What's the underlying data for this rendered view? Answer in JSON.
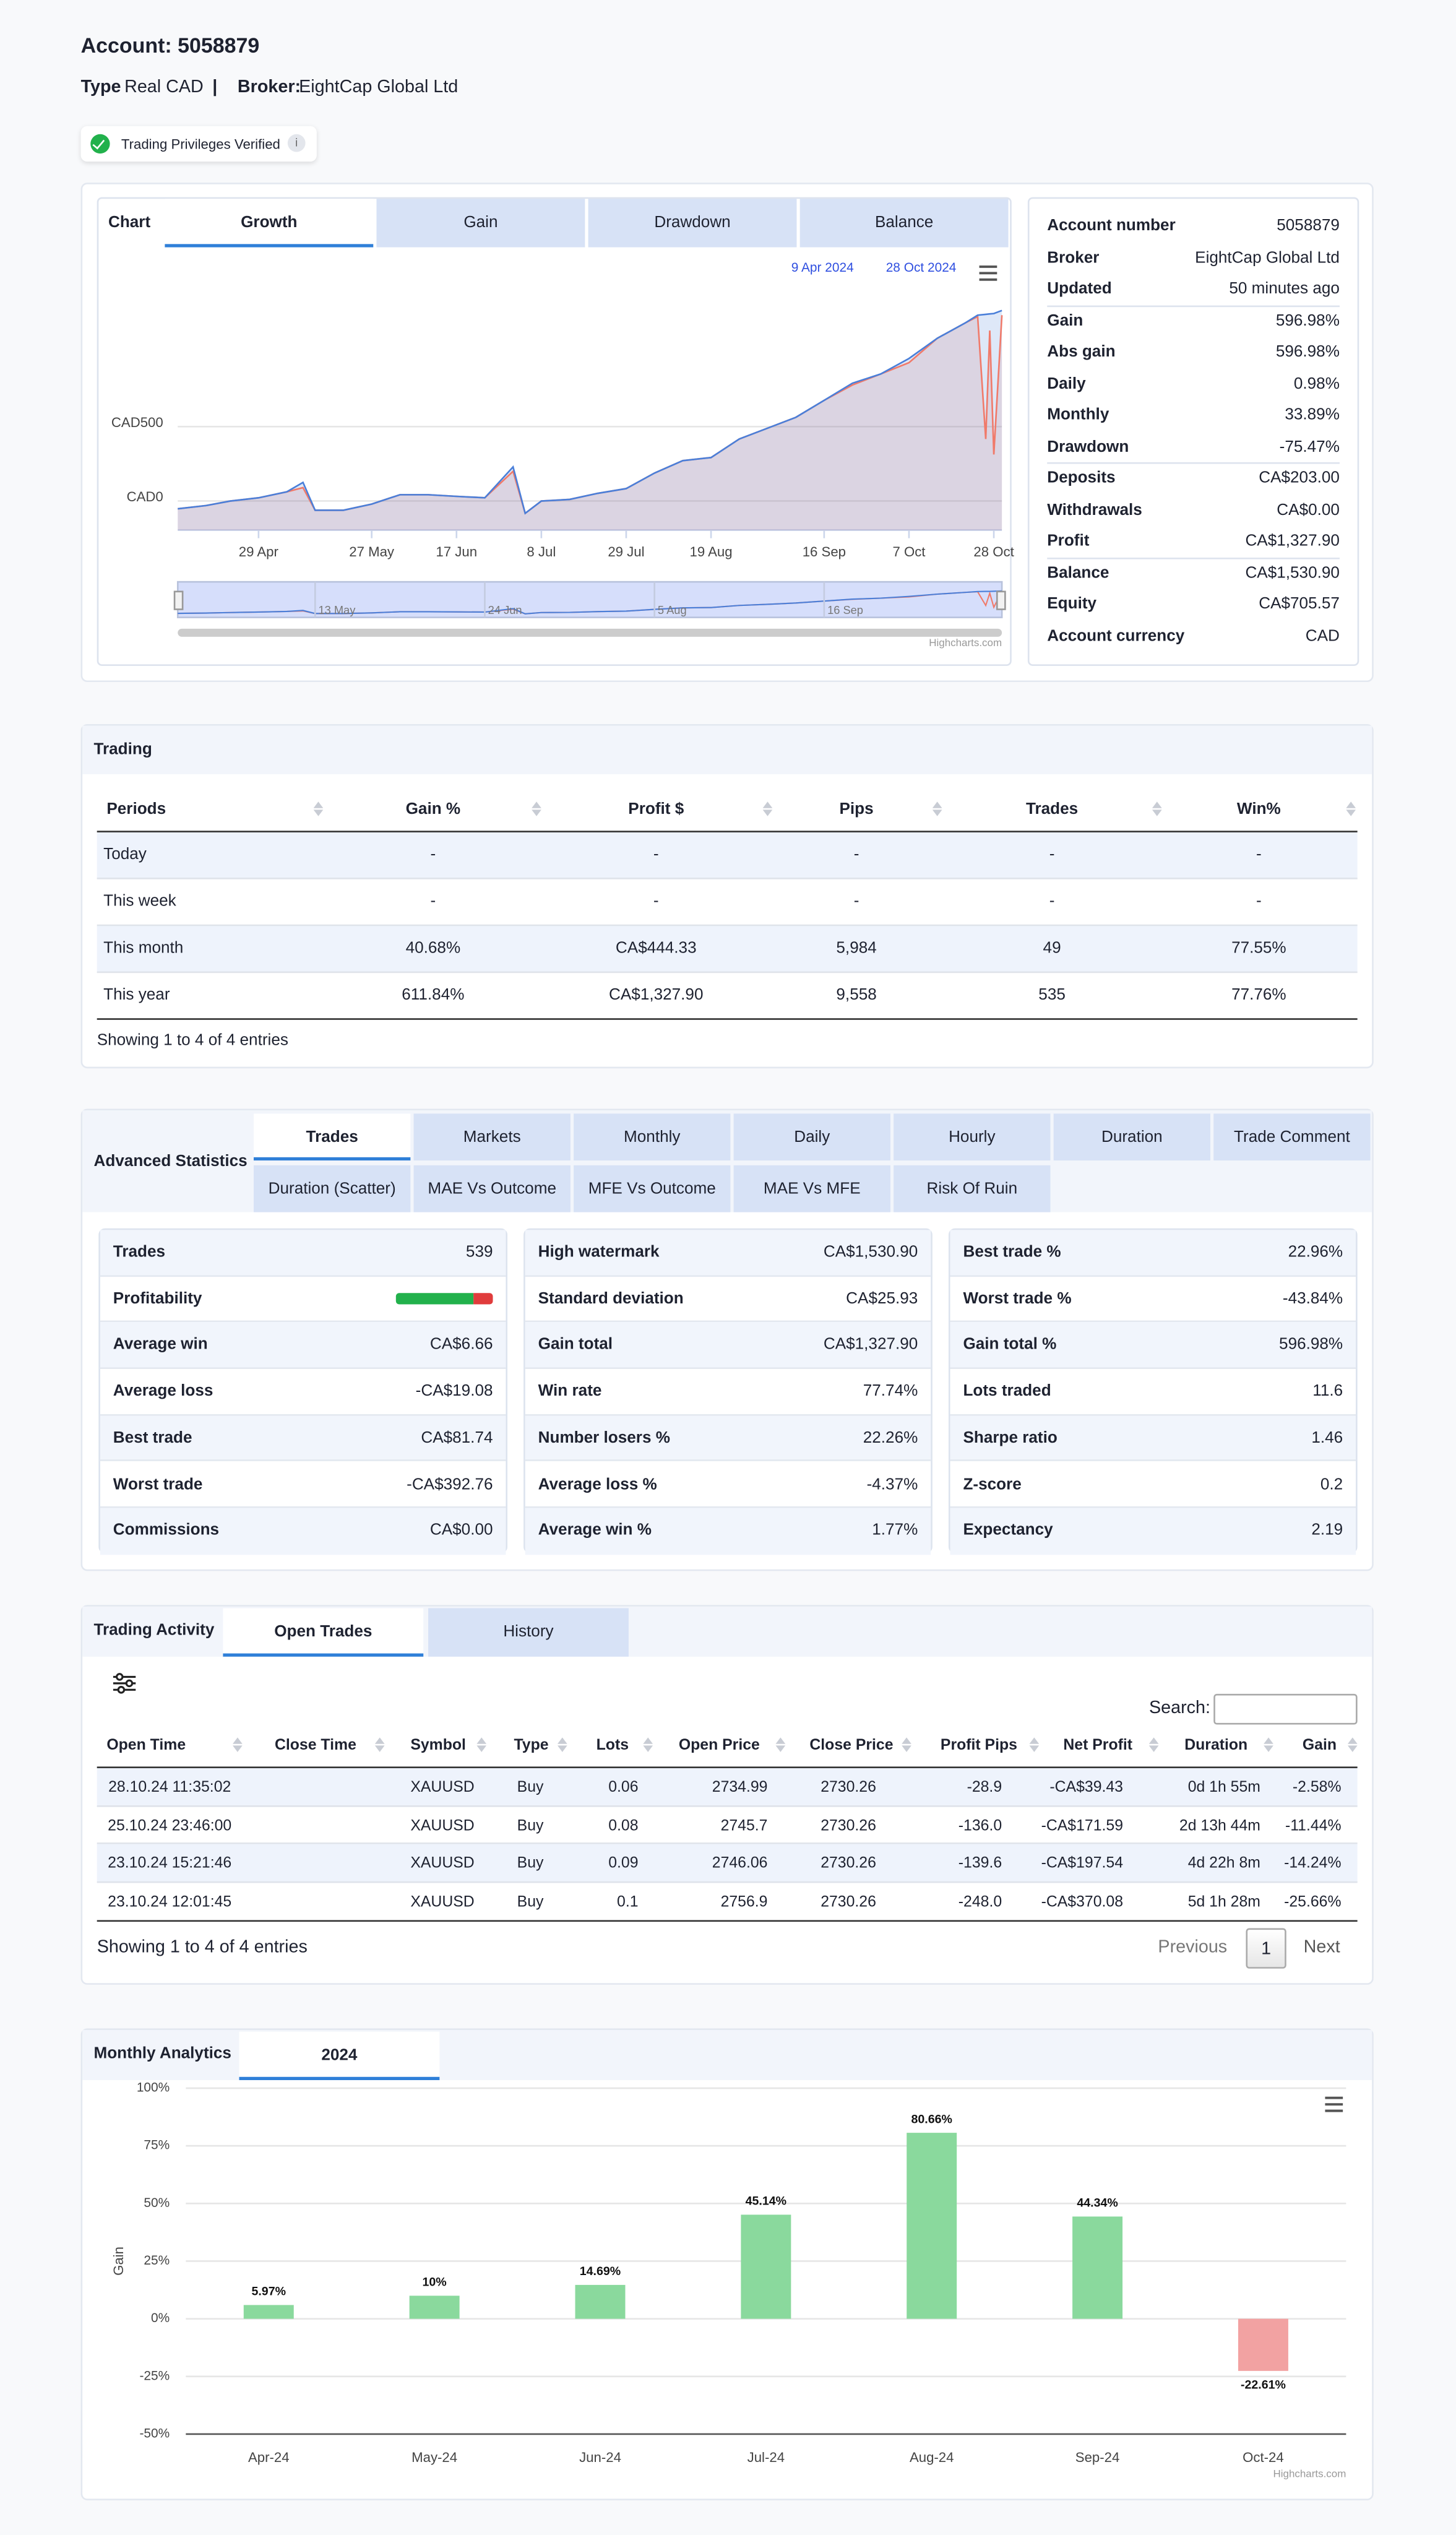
{
  "header": {
    "account": "Account: 5058879",
    "type_label": "Type",
    "type": "Real CAD",
    "separator": "|",
    "broker_label": "Broker:",
    "broker": "EightCap Global Ltd",
    "verified": "Trading Privileges Verified",
    "info_icon": "i"
  },
  "chart_panel": {
    "label": "Chart",
    "tabs": [
      "Growth",
      "Gain",
      "Drawdown",
      "Balance"
    ],
    "active_tab": 0
  },
  "account_info": [
    [
      "Account number",
      "5058879"
    ],
    [
      "Broker",
      "EightCap Global Ltd"
    ],
    [
      "Updated",
      "50 minutes ago"
    ],
    [
      "Gain",
      "596.98%"
    ],
    [
      "Abs gain",
      "596.98%"
    ],
    [
      "Daily",
      "0.98%"
    ],
    [
      "Monthly",
      "33.89%"
    ],
    [
      "Drawdown",
      "-75.47%"
    ],
    [
      "Deposits",
      "CA$203.00"
    ],
    [
      "Withdrawals",
      "CA$0.00"
    ],
    [
      "Profit",
      "CA$1,327.90"
    ],
    [
      "Balance",
      "CA$1,530.90"
    ],
    [
      "Equity",
      "CA$705.57"
    ],
    [
      "Account currency",
      "CAD"
    ]
  ],
  "trading": {
    "title": "Trading",
    "columns": [
      "Periods",
      "Gain %",
      "Profit $",
      "Pips",
      "Trades",
      "Win%"
    ],
    "rows": [
      [
        "Today",
        "-",
        "-",
        "-",
        "-",
        "-"
      ],
      [
        "This week",
        "-",
        "-",
        "-",
        "-",
        "-"
      ],
      [
        "This month",
        "40.68%",
        "CA$444.33",
        "5,984",
        "49",
        "77.55%"
      ],
      [
        "This year",
        "611.84%",
        "CA$1,327.90",
        "9,558",
        "535",
        "77.76%"
      ]
    ],
    "footer": "Showing 1 to 4 of 4 entries"
  },
  "advanced": {
    "title": "Advanced Statistics",
    "tabs": [
      [
        "Trades",
        "Markets",
        "Monthly",
        "Daily",
        "Hourly",
        "Duration",
        "Trade Comment"
      ],
      [
        "Duration (Scatter)",
        "MAE Vs Outcome",
        "MFE Vs Outcome",
        "MAE Vs MFE",
        "Risk Of Ruin"
      ]
    ],
    "active_tab": [
      0,
      0
    ],
    "panels": [
      [
        [
          "Trades",
          "539"
        ],
        [
          "Profitability"
        ],
        [
          "Average win",
          "CA$6.66"
        ],
        [
          "Average loss",
          "-CA$19.08"
        ],
        [
          "Best trade",
          "CA$81.74"
        ],
        [
          "Worst trade",
          "-CA$392.76"
        ],
        [
          "Commissions",
          "CA$0.00"
        ]
      ],
      [
        [
          "High watermark",
          "CA$1,530.90"
        ],
        [
          "Standard deviation",
          "CA$25.93"
        ],
        [
          "Gain total",
          "CA$1,327.90"
        ],
        [
          "Win rate",
          "77.74%"
        ],
        [
          "Number losers %",
          "22.26%"
        ],
        [
          "Average loss %",
          "-4.37%"
        ],
        [
          "Average win %",
          "1.77%"
        ]
      ],
      [
        [
          "Best trade %",
          "22.96%"
        ],
        [
          "Worst trade %",
          "-43.84%"
        ],
        [
          "Gain total %",
          "596.98%"
        ],
        [
          "Lots traded",
          "11.6"
        ],
        [
          "Sharpe ratio",
          "1.46"
        ],
        [
          "Z-score",
          "0.2"
        ],
        [
          "Expectancy",
          "2.19"
        ]
      ]
    ]
  },
  "activity": {
    "title": "Trading Activity",
    "tabs": [
      "Open Trades",
      "History"
    ],
    "active_tab": 0,
    "search_label": "Search:",
    "columns": [
      "Open Time",
      "Close Time",
      "Symbol",
      "Type",
      "Lots",
      "Open Price",
      "Close Price",
      "Profit Pips",
      "Net Profit",
      "Duration",
      "Gain"
    ],
    "rows": [
      [
        "28.10.24 11:35:02",
        null,
        "XAUUSD",
        "Buy",
        "0.06",
        "2734.99",
        "2730.26",
        "-28.9",
        "-CA$39.43",
        "0d 1h 55m",
        "-2.58%"
      ],
      [
        "25.10.24 23:46:00",
        null,
        "XAUUSD",
        "Buy",
        "0.08",
        "2745.7",
        "2730.26",
        "-136.0",
        "-CA$171.59",
        "2d 13h 44m",
        "-11.44%"
      ],
      [
        "23.10.24 15:21:46",
        null,
        "XAUUSD",
        "Buy",
        "0.09",
        "2746.06",
        "2730.26",
        "-139.6",
        "-CA$197.54",
        "4d 22h 8m",
        "-14.24%"
      ],
      [
        "23.10.24 12:01:45",
        null,
        "XAUUSD",
        "Buy",
        "0.1",
        "2756.9",
        "2730.26",
        "-248.0",
        "-CA$370.08",
        "5d 1h 28m",
        "-25.66%"
      ]
    ],
    "footer": "Showing 1 to 4 of 4 entries",
    "pagination": [
      "Previous",
      "1",
      "Next"
    ]
  },
  "monthly": {
    "title": "Monthly Analytics",
    "tabs": [
      "2024"
    ],
    "active_tab": 0
  },
  "chart_data": [
    {
      "type": "line",
      "range": [
        "9 Apr 2024",
        "28 Oct 2024"
      ],
      "x": [
        "2024-04-09",
        "2024-04-16",
        "2024-04-22",
        "2024-04-29",
        "2024-05-06",
        "2024-05-10",
        "2024-05-13",
        "2024-05-20",
        "2024-05-27",
        "2024-06-03",
        "2024-06-10",
        "2024-06-17",
        "2024-06-24",
        "2024-07-01",
        "2024-07-04",
        "2024-07-08",
        "2024-07-15",
        "2024-07-22",
        "2024-07-29",
        "2024-08-05",
        "2024-08-12",
        "2024-08-19",
        "2024-08-26",
        "2024-09-02",
        "2024-09-09",
        "2024-09-16",
        "2024-09-23",
        "2024-09-30",
        "2024-10-07",
        "2024-10-14",
        "2024-10-21",
        "2024-10-24",
        "2024-10-26",
        "2024-10-27",
        "2024-10-28",
        "2024-10-30"
      ],
      "series": [
        {
          "color": "#f07a6a",
          "values": [
            -52,
            -31,
            0,
            21,
            62,
            90,
            -62,
            -62,
            -21,
            42,
            42,
            31,
            21,
            200,
            -83,
            0,
            10,
            52,
            83,
            188,
            271,
            292,
            417,
            490,
            563,
            677,
            780,
            854,
            930,
            1094,
            1198,
            1240,
            417,
            1146,
            313,
            1250
          ]
        },
        {
          "color": "#4a7fd9",
          "values": [
            -52,
            -31,
            0,
            21,
            62,
            125,
            -62,
            -62,
            -21,
            42,
            42,
            31,
            21,
            229,
            -83,
            0,
            10,
            52,
            83,
            188,
            271,
            292,
            417,
            490,
            563,
            677,
            792,
            854,
            958,
            1094,
            1198,
            1250,
            1255,
            1258,
            1260,
            1281
          ]
        }
      ],
      "xlim": [
        "2024-04-09",
        "2024-10-30"
      ],
      "xticks": [
        {
          "value": "2024-04-29",
          "label": "29 Apr"
        },
        {
          "value": "2024-05-27",
          "label": "27 May"
        },
        {
          "value": "2024-06-17",
          "label": "17 Jun"
        },
        {
          "value": "2024-07-08",
          "label": "8 Jul"
        },
        {
          "value": "2024-07-29",
          "label": "29 Jul"
        },
        {
          "value": "2024-08-19",
          "label": "19 Aug"
        },
        {
          "value": "2024-09-16",
          "label": "16 Sep"
        },
        {
          "value": "2024-10-07",
          "label": "7 Oct"
        },
        {
          "value": "2024-10-28",
          "label": "28 Oct"
        }
      ],
      "ylim": [
        -196,
        1630
      ],
      "yticks": [
        {
          "value": 0,
          "label": "CAD0"
        },
        {
          "value": 500,
          "label": "CAD500"
        }
      ],
      "grid": true,
      "navigator_ticks": [
        {
          "value": "2024-05-13",
          "label": "13 May"
        },
        {
          "value": "2024-06-24",
          "label": "24 Jun"
        },
        {
          "value": "2024-08-05",
          "label": "5 Aug"
        },
        {
          "value": "2024-09-16",
          "label": "16 Sep"
        }
      ],
      "credits": "Highcharts.com"
    },
    {
      "type": "bar",
      "categories": [
        "Apr-24",
        "May-24",
        "Jun-24",
        "Jul-24",
        "Aug-24",
        "Sep-24",
        "Oct-24"
      ],
      "values": [
        5.97,
        10,
        14.69,
        45.14,
        80.66,
        44.34,
        -22.61
      ],
      "value_labels": [
        "5.97%",
        "10%",
        "14.69%",
        "45.14%",
        "80.66%",
        "44.34%",
        "-22.61%"
      ],
      "color": "#8ad99d",
      "negative_color": "#f2a2a2",
      "ylim": [
        -50,
        100
      ],
      "yticks": [
        {
          "value": -50,
          "label": "-50%"
        },
        {
          "value": -25,
          "label": "-25%"
        },
        {
          "value": 0,
          "label": "0%"
        },
        {
          "value": 25,
          "label": "25%"
        },
        {
          "value": 50,
          "label": "50%"
        },
        {
          "value": 75,
          "label": "75%"
        },
        {
          "value": 100,
          "label": "100%"
        }
      ],
      "ylabel": "Gain",
      "grid": true,
      "credits": "Highcharts.com"
    }
  ]
}
